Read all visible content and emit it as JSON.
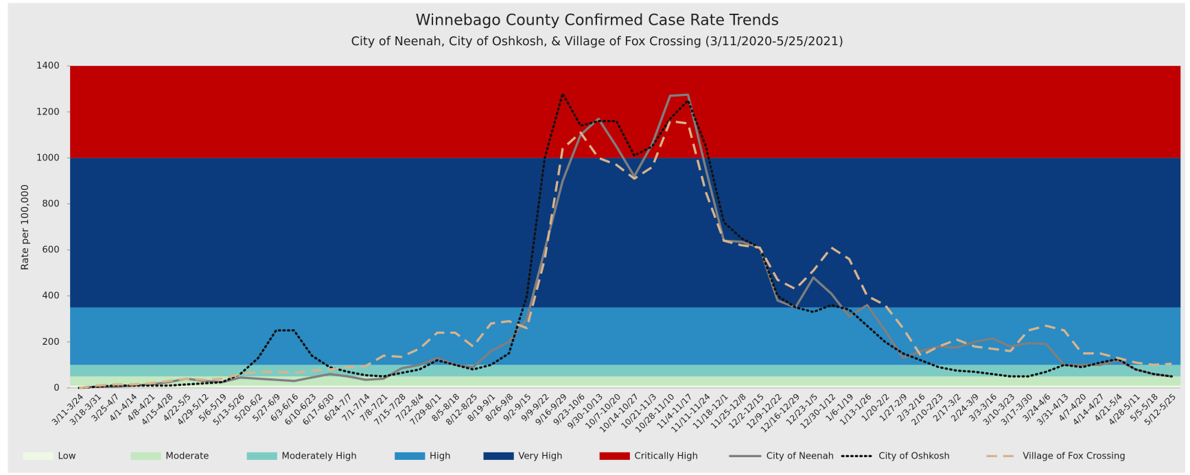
{
  "chart_data": {
    "type": "line",
    "title": "Winnebago County Confirmed Case Rate Trends",
    "subtitle": "City of Neenah, City of Oshkosh, & Village of Fox Crossing (3/11/2020-5/25/2021)",
    "y_label": "Rate per 100,000",
    "categories": [
      "3/11-3/24",
      "3/18-3/31",
      "3/25-4/7",
      "4/1-4/14",
      "4/8-4/21",
      "4/15-4/28",
      "4/22-5/5",
      "4/29-5/12",
      "5/6-5/19",
      "5/13-5/26",
      "5/20-6/2",
      "5/27-6/9",
      "6/3-6/16",
      "6/10-6/23",
      "6/17-6/30",
      "6/24-7/7",
      "7/1-7/14",
      "7/8-7/21",
      "7/15-7/28",
      "7/22-8/4",
      "7/29-8/11",
      "8/5-8/18",
      "8/12-8/25",
      "8/19-9/1",
      "8/26-9/8",
      "9/2-9/15",
      "9/9-9/22",
      "9/16-9/29",
      "9/23-10/6",
      "9/30-10/13",
      "10/7-10/20",
      "10/14-10/27",
      "10/21-11/3",
      "10/28-11/10",
      "11/4-11/17",
      "11/11-11/24",
      "11/18-12/1",
      "11/25-12/8",
      "12/2-12/15",
      "12/9-12/22",
      "12/16-12/29",
      "12/23-1/5",
      "12/30-1/12",
      "1/6-1/19",
      "1/13-1/26",
      "1/20-2/2",
      "1/27-2/9",
      "2/3-2/16",
      "2/10-2/23",
      "2/17-3/2",
      "2/24-3/9",
      "3/3-3/16",
      "3/10-3/23",
      "3/17-3/30",
      "3/24-4/6",
      "3/31-4/13",
      "4/7-4/20",
      "4/14-4/27",
      "4/21-5/4",
      "4/28-5/11",
      "5/5-5/18",
      "5/12-5/25"
    ],
    "bands": [
      {
        "name": "Low",
        "color": "#eef8e4",
        "range": [
          0,
          10
        ]
      },
      {
        "name": "Moderate",
        "color": "#c4e8c0",
        "range": [
          10,
          50
        ]
      },
      {
        "name": "Moderately High",
        "color": "#7dccc4",
        "range": [
          50,
          100
        ]
      },
      {
        "name": "High",
        "color": "#2b8bc3",
        "range": [
          100,
          350
        ]
      },
      {
        "name": "Very High",
        "color": "#0b3b7c",
        "range": [
          350,
          1000
        ]
      },
      {
        "name": "Critically High",
        "color": "#c00000",
        "range": [
          1000,
          1400
        ]
      }
    ],
    "series": [
      {
        "name": "City of Neenah",
        "color": "#7f7f7f",
        "dash": "solid",
        "values": [
          0,
          5,
          5,
          10,
          15,
          25,
          40,
          30,
          25,
          45,
          40,
          35,
          30,
          45,
          60,
          50,
          35,
          40,
          85,
          100,
          130,
          100,
          90,
          160,
          200,
          300,
          600,
          900,
          1100,
          1170,
          1050,
          920,
          1060,
          1270,
          1275,
          950,
          640,
          635,
          610,
          380,
          350,
          480,
          410,
          310,
          360,
          250,
          130,
          160,
          180,
          175,
          200,
          215,
          180,
          195,
          190,
          100,
          100,
          100,
          120,
          80,
          60,
          50
        ]
      },
      {
        "name": "City of Oshkosh",
        "color": "#111111",
        "dash": "dotted",
        "values": [
          0,
          5,
          10,
          10,
          10,
          10,
          15,
          20,
          25,
          60,
          130,
          250,
          250,
          140,
          90,
          70,
          55,
          50,
          65,
          80,
          120,
          100,
          80,
          100,
          150,
          400,
          1000,
          1280,
          1140,
          1160,
          1160,
          1010,
          1050,
          1170,
          1250,
          1050,
          720,
          650,
          610,
          400,
          350,
          330,
          360,
          340,
          270,
          200,
          150,
          120,
          90,
          75,
          70,
          60,
          50,
          50,
          70,
          100,
          90,
          110,
          125,
          80,
          60,
          50
        ]
      },
      {
        "name": "Village of Fox Crossing",
        "color": "#d9b38c",
        "dash": "dashed",
        "values": [
          0,
          10,
          15,
          15,
          20,
          30,
          40,
          35,
          40,
          60,
          70,
          70,
          65,
          75,
          80,
          90,
          95,
          140,
          135,
          170,
          240,
          240,
          180,
          280,
          290,
          260,
          560,
          1040,
          1110,
          1000,
          970,
          910,
          960,
          1160,
          1150,
          850,
          640,
          620,
          610,
          470,
          430,
          510,
          610,
          560,
          400,
          360,
          260,
          140,
          180,
          210,
          180,
          170,
          160,
          250,
          270,
          250,
          150,
          150,
          130,
          110,
          100,
          105
        ]
      }
    ],
    "ylim": [
      0,
      1400
    ],
    "yticks": [
      0,
      200,
      400,
      600,
      800,
      1000,
      1200,
      1400
    ],
    "legend": "bottom"
  }
}
